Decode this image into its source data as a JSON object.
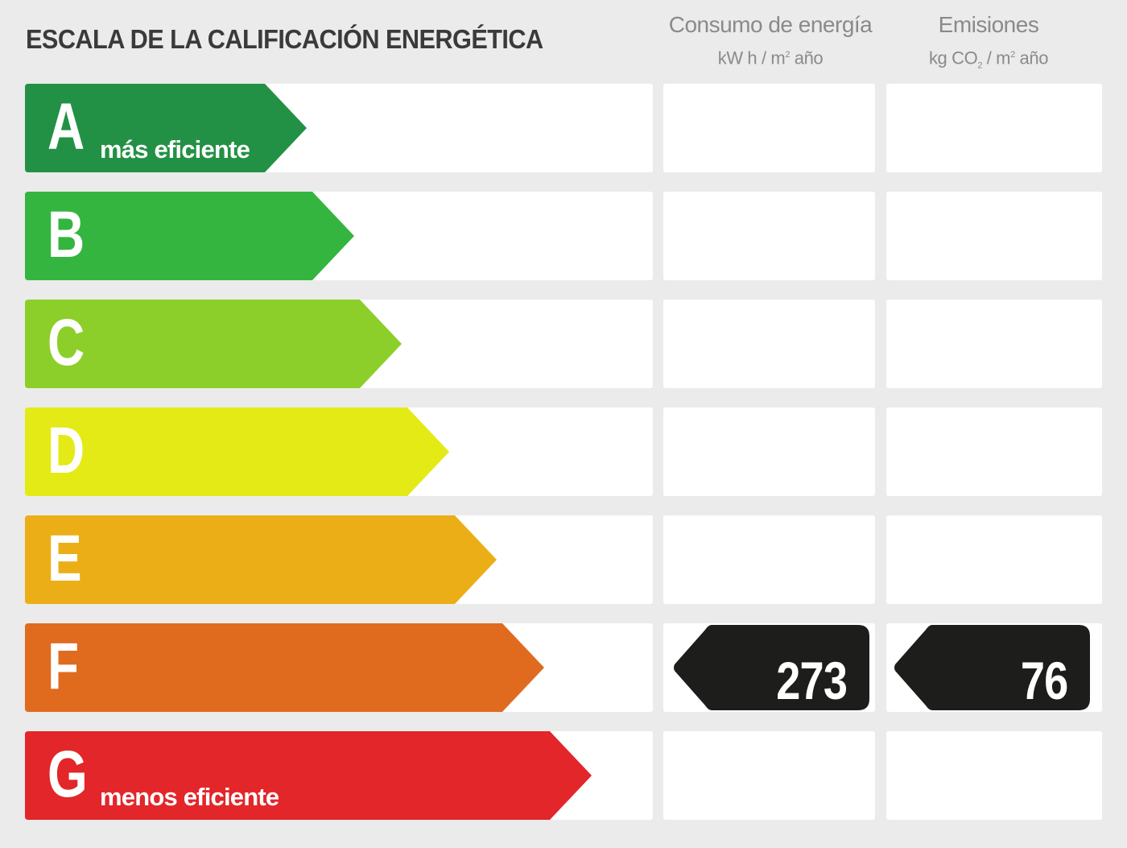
{
  "title": "ESCALA DE LA CALIFICACIÓN ENERGÉTICA",
  "columns": {
    "consumo": {
      "title": "Consumo de energía",
      "unit_pre": "kW h / m",
      "unit_sup": "2",
      "unit_post": " año"
    },
    "emisiones": {
      "title": "Emisiones",
      "unit_pre": "kg CO",
      "unit_sub": "2",
      "unit_mid": " / m",
      "unit_sup": "2",
      "unit_post": " año"
    }
  },
  "chart_data": {
    "type": "table",
    "title": "ESCALA DE LA CALIFICACIÓN ENERGÉTICA",
    "categories": [
      "A",
      "B",
      "C",
      "D",
      "E",
      "F",
      "G"
    ],
    "category_labels": {
      "A": "más eficiente",
      "G": "menos eficiente"
    },
    "category_colors": [
      "#239145",
      "#34b540",
      "#8dcf2a",
      "#e3ea16",
      "#ecae17",
      "#e06b1f",
      "#e2262a"
    ],
    "series": [
      {
        "name": "Consumo de energía",
        "unit": "kW h / m² año",
        "rating": "F",
        "value": 273
      },
      {
        "name": "Emisiones",
        "unit": "kg CO₂ / m² año",
        "rating": "F",
        "value": 76
      }
    ]
  }
}
